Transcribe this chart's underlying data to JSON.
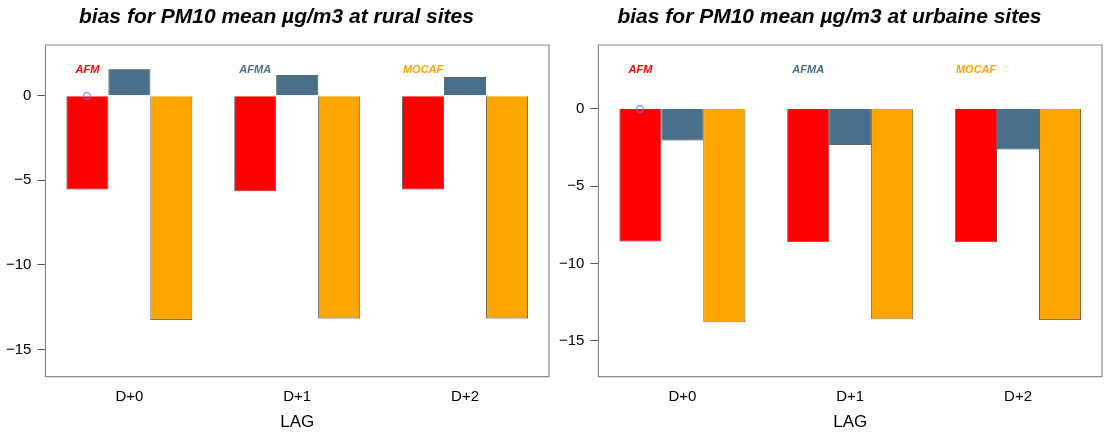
{
  "chart_data": [
    {
      "type": "bar",
      "title": "bias for PM10 mean µg/m3 at rural sites",
      "xlabel": "LAG",
      "categories": [
        "D+0",
        "D+1",
        "D+2"
      ],
      "series": [
        {
          "name": "AFM",
          "color": "#ff0000",
          "values": [
            -5.54,
            -5.65,
            -5.54
          ]
        },
        {
          "name": "AFMA",
          "color": "#4a6f8a",
          "values": [
            1.57,
            1.23,
            1.11
          ]
        },
        {
          "name": "MOCAF",
          "color": "#ffa500",
          "values": [
            -13.26,
            -13.16,
            -13.16
          ]
        }
      ],
      "ylim": [
        -16.6,
        3.0
      ],
      "yticks": [
        -15,
        -10,
        -5,
        0
      ],
      "grid": false,
      "legend": "top"
    },
    {
      "type": "bar",
      "title": "bias for PM10 mean µg/m3 at urbaine sites",
      "xlabel": "LAG",
      "categories": [
        "D+0",
        "D+1",
        "D+2"
      ],
      "series": [
        {
          "name": "AFM",
          "color": "#ff0000",
          "values": [
            -8.58,
            -8.63,
            -8.63
          ]
        },
        {
          "name": "AFMA",
          "color": "#4a6f8a",
          "values": [
            -2.07,
            -2.36,
            -2.64
          ]
        },
        {
          "name": "MOCAF",
          "color": "#ffa500",
          "values": [
            -13.8,
            -13.6,
            -13.65
          ]
        }
      ],
      "ylim": [
        -17.3,
        4.1
      ],
      "yticks": [
        -15,
        -10,
        -5,
        0
      ],
      "grid": false,
      "legend": "top"
    }
  ]
}
